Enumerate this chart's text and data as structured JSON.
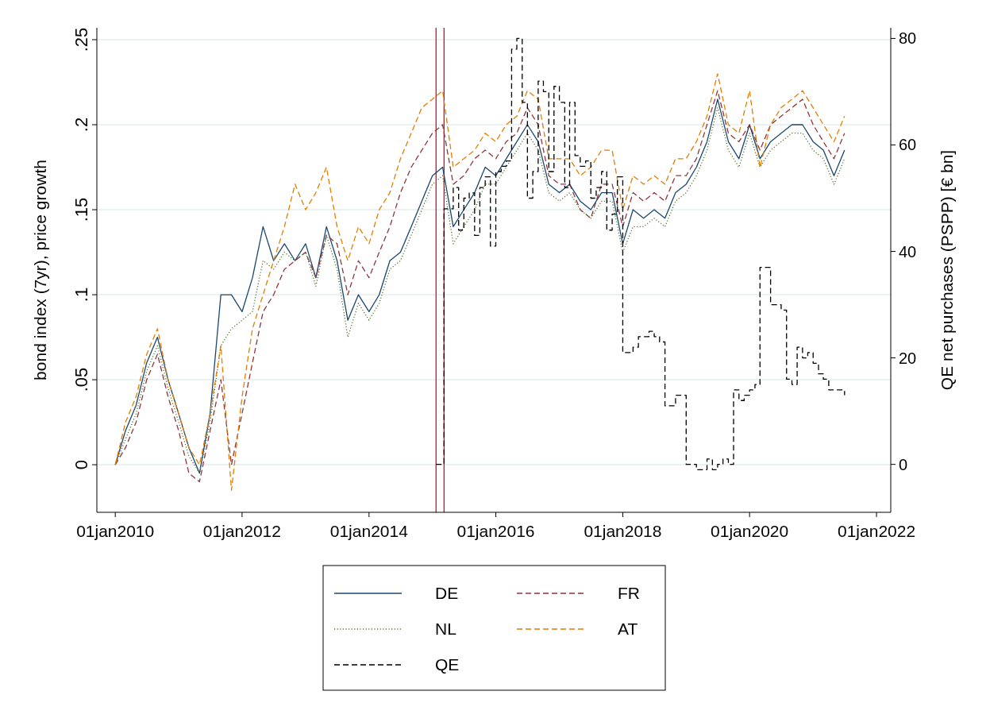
{
  "chart_data": {
    "type": "line",
    "ylabel": "bond index (7yr), price growth",
    "y2label": "QE net purchases (PSPP) [€ bn]",
    "xlim": [
      "2009-09-17",
      "2022-03-24"
    ],
    "xticks": [
      {
        "value": "2010-01-01",
        "label": "01jan2010"
      },
      {
        "value": "2012-01-01",
        "label": "01jan2012"
      },
      {
        "value": "2014-01-01",
        "label": "01jan2014"
      },
      {
        "value": "2016-01-01",
        "label": "01jan2016"
      },
      {
        "value": "2018-01-01",
        "label": "01jan2018"
      },
      {
        "value": "2020-01-01",
        "label": "01jan2020"
      },
      {
        "value": "2022-01-01",
        "label": "01jan2022"
      }
    ],
    "ylim": [
      -0.028,
      0.257
    ],
    "yticks": [
      0,
      {
        "value": 0.05,
        "label": ".05"
      },
      {
        "value": 0.1,
        "label": ".1"
      },
      {
        "value": 0.15,
        "label": ".15"
      },
      {
        "value": 0.2,
        "label": ".2"
      },
      {
        "value": 0.25,
        "label": ".25"
      }
    ],
    "y2lim": [
      -9,
      82
    ],
    "y2ticks": [
      0,
      20,
      40,
      60,
      80
    ],
    "grid": "y",
    "legend": "bottom",
    "x": [
      "2010-01",
      "2010-03",
      "2010-05",
      "2010-07",
      "2010-09",
      "2010-11",
      "2011-01",
      "2011-03",
      "2011-05",
      "2011-07",
      "2011-09",
      "2011-11",
      "2012-01",
      "2012-03",
      "2012-05",
      "2012-07",
      "2012-09",
      "2012-11",
      "2013-01",
      "2013-03",
      "2013-05",
      "2013-07",
      "2013-09",
      "2013-11",
      "2014-01",
      "2014-03",
      "2014-05",
      "2014-07",
      "2014-09",
      "2014-11",
      "2015-01",
      "2015-03",
      "2015-05",
      "2015-07",
      "2015-09",
      "2015-11",
      "2016-01",
      "2016-03",
      "2016-05",
      "2016-07",
      "2016-09",
      "2016-11",
      "2017-01",
      "2017-03",
      "2017-05",
      "2017-07",
      "2017-09",
      "2017-11",
      "2018-01",
      "2018-03",
      "2018-05",
      "2018-07",
      "2018-09",
      "2018-11",
      "2019-01",
      "2019-03",
      "2019-05",
      "2019-07",
      "2019-09",
      "2019-11",
      "2020-01",
      "2020-03",
      "2020-05",
      "2020-07",
      "2020-09",
      "2020-11",
      "2021-01",
      "2021-03",
      "2021-05",
      "2021-07"
    ],
    "series": [
      {
        "name": "DE",
        "color": "#1a476f",
        "line_style": "solid",
        "values": [
          0,
          0.02,
          0.035,
          0.06,
          0.075,
          0.05,
          0.03,
          0.01,
          -0.005,
          0.03,
          0.1,
          0.1,
          0.09,
          0.11,
          0.14,
          0.12,
          0.13,
          0.12,
          0.13,
          0.11,
          0.14,
          0.12,
          0.085,
          0.1,
          0.09,
          0.1,
          0.12,
          0.125,
          0.14,
          0.155,
          0.17,
          0.175,
          0.14,
          0.15,
          0.16,
          0.175,
          0.17,
          0.18,
          0.19,
          0.2,
          0.19,
          0.165,
          0.16,
          0.165,
          0.155,
          0.15,
          0.16,
          0.16,
          0.13,
          0.15,
          0.145,
          0.15,
          0.145,
          0.16,
          0.165,
          0.175,
          0.19,
          0.215,
          0.19,
          0.18,
          0.2,
          0.18,
          0.19,
          0.195,
          0.2,
          0.2,
          0.19,
          0.185,
          0.17,
          0.185
        ]
      },
      {
        "name": "FR",
        "color": "#90353b",
        "line_style": "dashed",
        "values": [
          0,
          0.01,
          0.025,
          0.05,
          0.065,
          0.04,
          0.02,
          -0.005,
          -0.01,
          0.02,
          0.05,
          0.0,
          0.03,
          0.06,
          0.09,
          0.1,
          0.115,
          0.12,
          0.125,
          0.11,
          0.135,
          0.13,
          0.1,
          0.12,
          0.11,
          0.125,
          0.14,
          0.16,
          0.175,
          0.185,
          0.195,
          0.2,
          0.165,
          0.17,
          0.18,
          0.185,
          0.18,
          0.19,
          0.195,
          0.21,
          0.2,
          0.17,
          0.165,
          0.165,
          0.15,
          0.145,
          0.165,
          0.165,
          0.14,
          0.16,
          0.155,
          0.16,
          0.155,
          0.17,
          0.17,
          0.18,
          0.2,
          0.22,
          0.195,
          0.19,
          0.2,
          0.185,
          0.2,
          0.205,
          0.21,
          0.215,
          0.2,
          0.19,
          0.18,
          0.195
        ]
      },
      {
        "name": "NL",
        "color": "#55752f",
        "line_style": "dotted",
        "values": [
          0,
          0.015,
          0.03,
          0.055,
          0.07,
          0.045,
          0.025,
          0.005,
          -0.005,
          0.025,
          0.07,
          0.08,
          0.085,
          0.09,
          0.12,
          0.115,
          0.125,
          0.12,
          0.125,
          0.105,
          0.135,
          0.115,
          0.075,
          0.095,
          0.085,
          0.095,
          0.115,
          0.12,
          0.135,
          0.15,
          0.165,
          0.17,
          0.13,
          0.14,
          0.15,
          0.165,
          0.165,
          0.175,
          0.185,
          0.195,
          0.185,
          0.16,
          0.155,
          0.16,
          0.15,
          0.145,
          0.155,
          0.155,
          0.125,
          0.14,
          0.14,
          0.145,
          0.14,
          0.155,
          0.16,
          0.17,
          0.185,
          0.21,
          0.185,
          0.175,
          0.195,
          0.175,
          0.185,
          0.19,
          0.195,
          0.195,
          0.185,
          0.18,
          0.165,
          0.18
        ]
      },
      {
        "name": "AT",
        "color": "#e37e00",
        "line_style": "dashed",
        "values": [
          0,
          0.025,
          0.04,
          0.065,
          0.08,
          0.05,
          0.03,
          0.01,
          0.0,
          0.03,
          0.07,
          -0.015,
          0.04,
          0.08,
          0.1,
          0.12,
          0.14,
          0.165,
          0.15,
          0.16,
          0.175,
          0.14,
          0.12,
          0.14,
          0.13,
          0.15,
          0.16,
          0.18,
          0.195,
          0.21,
          0.215,
          0.22,
          0.175,
          0.18,
          0.185,
          0.195,
          0.19,
          0.2,
          0.205,
          0.22,
          0.215,
          0.18,
          0.18,
          0.18,
          0.17,
          0.175,
          0.185,
          0.185,
          0.15,
          0.17,
          0.165,
          0.17,
          0.165,
          0.18,
          0.18,
          0.19,
          0.205,
          0.23,
          0.2,
          0.195,
          0.22,
          0.175,
          0.2,
          0.21,
          0.215,
          0.22,
          0.21,
          0.2,
          0.19,
          0.205
        ]
      },
      {
        "name": "QE",
        "color": "#000000",
        "type": "step",
        "axis": "y2",
        "line_style": "dashed",
        "x": [
          "2015-01-22",
          "2015-03-09",
          "2015-05",
          "2015-06",
          "2015-07",
          "2015-08",
          "2015-09",
          "2015-10",
          "2015-11",
          "2015-12",
          "2016-01",
          "2016-02",
          "2016-03",
          "2016-04",
          "2016-05",
          "2016-06",
          "2016-07",
          "2016-08",
          "2016-09",
          "2016-10",
          "2016-11",
          "2016-12",
          "2017-01",
          "2017-02",
          "2017-03",
          "2017-04",
          "2017-05",
          "2017-06",
          "2017-07",
          "2017-08",
          "2017-09",
          "2017-10",
          "2017-11",
          "2017-12",
          "2018-01",
          "2018-02",
          "2018-03",
          "2018-04",
          "2018-05",
          "2018-06",
          "2018-07",
          "2018-08",
          "2018-09",
          "2018-10",
          "2018-11",
          "2018-12",
          "2019-01",
          "2019-02",
          "2019-03",
          "2019-04",
          "2019-05",
          "2019-06",
          "2019-07",
          "2019-08",
          "2019-09",
          "2019-10",
          "2019-11",
          "2019-12",
          "2020-01",
          "2020-02",
          "2020-03",
          "2020-04",
          "2020-05",
          "2020-06",
          "2020-07",
          "2020-08",
          "2020-09",
          "2020-10",
          "2020-11",
          "2020-12",
          "2021-01",
          "2021-02",
          "2021-03",
          "2021-04",
          "2021-05",
          "2021-06",
          "2021-07"
        ],
        "values": [
          0,
          48,
          52,
          44,
          50,
          51,
          43,
          52,
          54,
          41,
          55,
          56,
          57,
          78,
          80,
          68,
          50,
          55,
          72,
          70,
          55,
          71,
          68,
          52,
          68,
          58,
          56,
          57,
          50,
          52,
          55,
          44,
          47,
          54,
          21,
          21,
          22,
          24,
          24,
          25,
          24,
          23,
          11,
          11,
          13,
          13,
          0,
          0,
          -1,
          -1,
          1,
          -1,
          0,
          1,
          0,
          14,
          12,
          13,
          14,
          15,
          37,
          37,
          30,
          30,
          29,
          16,
          15,
          22,
          20,
          21,
          19,
          17,
          16,
          14,
          14,
          14,
          13
        ]
      }
    ],
    "ref_lines": [
      {
        "axis": "x",
        "value": "2015-01-22",
        "color": "#c8102e"
      },
      {
        "axis": "x",
        "value": "2015-03-09",
        "color": "#c8102e"
      }
    ]
  }
}
